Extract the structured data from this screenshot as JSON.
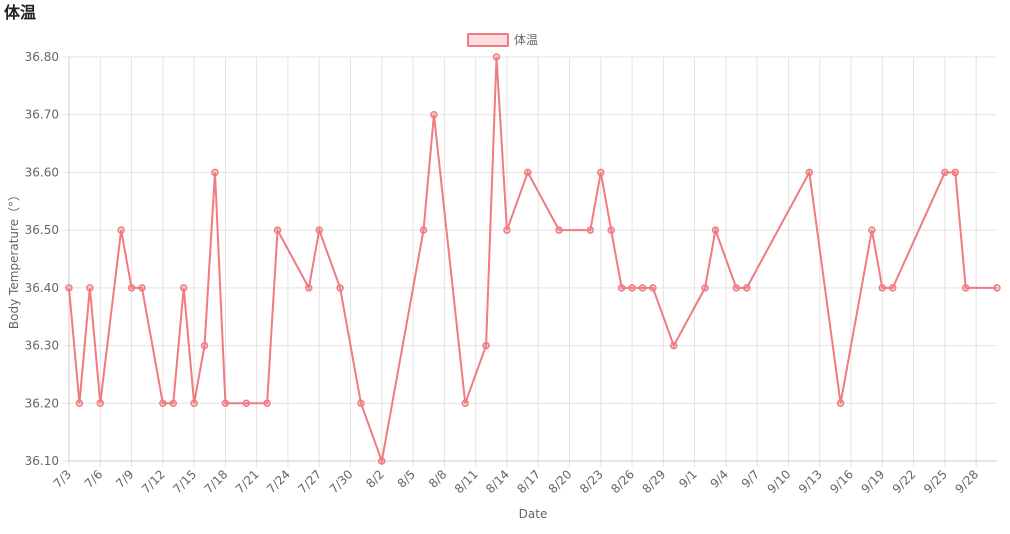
{
  "chart_data": {
    "type": "line",
    "title": "体温",
    "x_label": "Date",
    "y_label": "Body Temperature（°）",
    "x": [
      "7/3",
      "7/4",
      "7/5",
      "7/6",
      "7/8",
      "7/9",
      "7/10",
      "7/12",
      "7/13",
      "7/14",
      "7/15",
      "7/16",
      "7/17",
      "7/18",
      "7/20",
      "7/22",
      "7/23",
      "7/26",
      "7/27",
      "7/29",
      "7/31",
      "8/2",
      "8/6",
      "8/7",
      "8/10",
      "8/12",
      "8/13",
      "8/14",
      "8/16",
      "8/19",
      "8/22",
      "8/23",
      "8/24",
      "8/25",
      "8/26",
      "8/27",
      "8/28",
      "8/30",
      "9/2",
      "9/3",
      "9/5",
      "9/6",
      "9/12",
      "9/15",
      "9/18",
      "9/19",
      "9/20",
      "9/25",
      "9/26",
      "9/27",
      "9/30"
    ],
    "series": [
      {
        "name": "体温",
        "color": "#f07b80",
        "values": [
          36.4,
          36.2,
          36.4,
          36.2,
          36.5,
          36.4,
          36.4,
          36.2,
          36.2,
          36.4,
          36.2,
          36.3,
          36.6,
          36.2,
          36.2,
          36.2,
          36.5,
          36.4,
          36.5,
          36.4,
          36.2,
          36.1,
          36.5,
          36.7,
          36.2,
          36.3,
          36.8,
          36.5,
          36.6,
          36.5,
          36.5,
          36.6,
          36.5,
          36.4,
          36.4,
          36.4,
          36.4,
          36.3,
          36.4,
          36.5,
          36.4,
          36.4,
          36.6,
          36.2,
          36.5,
          36.4,
          36.4,
          36.6,
          36.6,
          36.4,
          36.4
        ]
      }
    ],
    "xlim": [
      "7/3",
      "9/30"
    ],
    "xticks": [
      "7/3",
      "7/6",
      "7/9",
      "7/12",
      "7/15",
      "7/18",
      "7/21",
      "7/24",
      "7/27",
      "7/30",
      "8/2",
      "8/5",
      "8/8",
      "8/11",
      "8/14",
      "8/17",
      "8/20",
      "8/23",
      "8/26",
      "8/29",
      "9/1",
      "9/4",
      "9/7",
      "9/10",
      "9/13",
      "9/16",
      "9/19",
      "9/22",
      "9/25",
      "9/28"
    ],
    "ylim": [
      36.1,
      36.8
    ],
    "yticks": [
      {
        "value": 36.1,
        "label": "36.10"
      },
      {
        "value": 36.2,
        "label": "36.20"
      },
      {
        "value": 36.3,
        "label": "36.30"
      },
      {
        "value": 36.4,
        "label": "36.40"
      },
      {
        "value": 36.5,
        "label": "36.50"
      },
      {
        "value": 36.6,
        "label": "36.60"
      },
      {
        "value": 36.7,
        "label": "36.70"
      },
      {
        "value": 36.8,
        "label": "36.80"
      }
    ],
    "grid": true,
    "legend": "top"
  }
}
